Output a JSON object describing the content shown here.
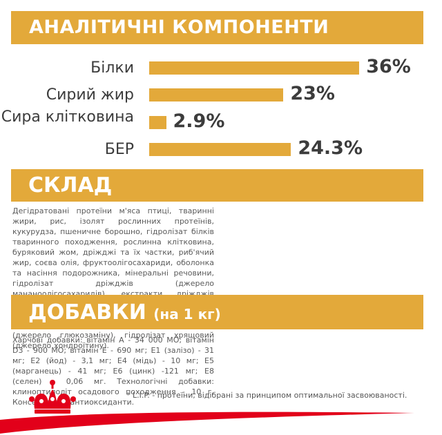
{
  "analytic": {
    "title": "АНАЛІТИЧНІ КОМПОНЕНТИ",
    "items": [
      {
        "label": "Білки",
        "value": "36%",
        "percent": 36
      },
      {
        "label": "Сирий жир",
        "value": "23%",
        "percent": 23
      },
      {
        "label": "Сира клітковина",
        "value": "2.9%",
        "percent": 2.9
      },
      {
        "label": "БЕР",
        "value": "24.3%",
        "percent": 24.3
      }
    ]
  },
  "composition": {
    "title": "СКЛАД",
    "left_text": "Дегідратовані протеїни м'яса птиці, тваринні жири, рис, ізолят рослинних протеїнів, кукурудза, пшеничне борошно, гідролізат білків тваринного походження, рослинна клітковина, буряковий жом, дріжджі та їх частки, риб'ячий жир, соєва олія, фруктоолігосахариди, оболонка та насіння подорожника, мінеральні речовини, гідролізат дріжджів (джерело мананоолігосахаридів), екстракти дріжджів (джерело бета-глюканів), олія огірочника, екстракт чорнобривців прямостоячих (джерело лютеїну), гідролізат із панцира ракоподібних (джерело глюкозаміну), гідролізат хрящовий (джерело хондроїтину)."
  },
  "additives": {
    "title": "ДОБАВКИ",
    "subtitle": "(на 1 кг)",
    "text": "Харчові добавки: вітамін А - 34 000 МО; вітамін D3 - 900 МО; вітамін Е - 690 мг; E1 (залізо) - 31 мг; E2 (йод) - 3,1 мг; E4 (мідь) - 10 мг; E5 (марганець) - 41 мг; E6 (цинк) -121 мг; E8 (селен) - 0,06 мг. Технологічні добавки: клиноптилоліт осадового походження - 10 г. Консерванти -антиоксиданти."
  },
  "footnote": "* L.I.P. - протеїни, відібрані за принципом оптимальної засвоюваності.",
  "colors": {
    "accent": "#e3a93a",
    "brand_red": "#e2001a",
    "text": "#4d4d4d"
  },
  "icons": {
    "brand": "crown-icon"
  }
}
